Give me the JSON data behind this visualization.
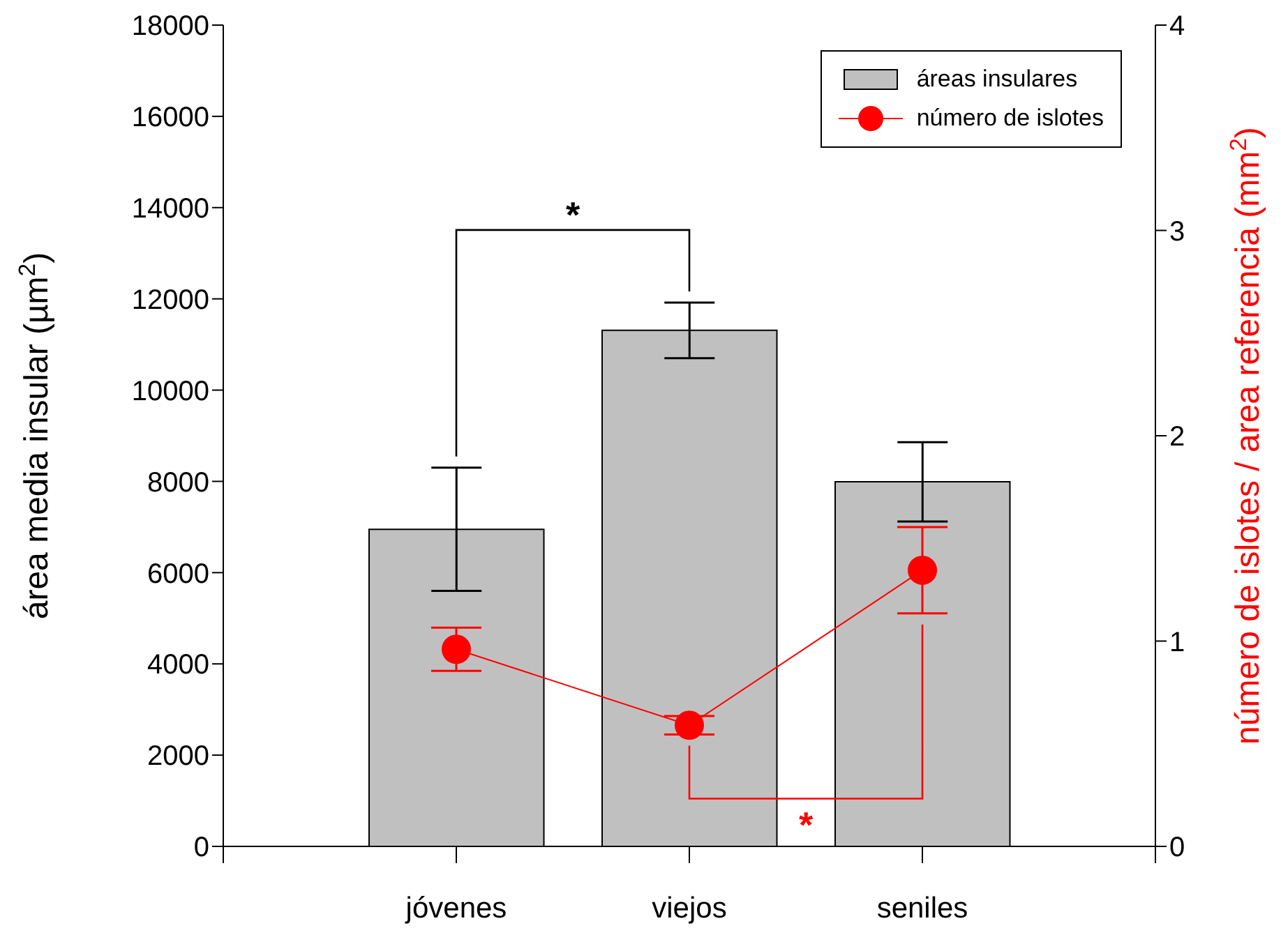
{
  "chart_data": {
    "type": "bar",
    "categories": [
      "jóvenes",
      "viejos",
      "seniles"
    ],
    "ylabel": "área media insular (µm$^{2}$)",
    "y2label": "número de islotes / area referencia (mm$^{2}$)",
    "series": [
      {
        "name": "áreas insulares",
        "color": "#c0c0c0",
        "values": [
          6950,
          11310,
          7990
        ],
        "errors": [
          1350,
          610,
          870
        ]
      },
      {
        "name": "número de islotes",
        "type": "line",
        "axis": "y2",
        "color": "#ff0000",
        "values": [
          0.96,
          0.59,
          1.345
        ],
        "errors": [
          0.105,
          0.045,
          0.21
        ]
      }
    ],
    "ylim": [
      0,
      18000
    ],
    "yticks": [
      0,
      2000,
      4000,
      6000,
      8000,
      10000,
      12000,
      14000,
      16000,
      18000
    ],
    "y2lim": [
      0,
      4
    ],
    "y2ticks": [
      0,
      1,
      2,
      3,
      4
    ],
    "annotations": [
      "*",
      "*"
    ],
    "legend": "top right",
    "grid": false,
    "marker": "circle",
    "line_style": "solid"
  }
}
